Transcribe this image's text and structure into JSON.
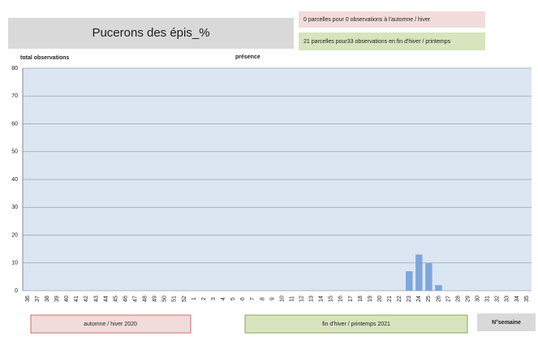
{
  "chart_data": {
    "type": "bar",
    "title": "Pucerons des épis_%",
    "notes": [
      "0 parcelles pour 0 observations à l'automne / hiver",
      "21 parcelles pour33 observations en fin d'hiver / printemps"
    ],
    "ylabel": "total observations",
    "series_label": "présence",
    "xlabel": "N°semaine",
    "period_labels": [
      "automne / hiver 2020",
      "fin d'hiver / printemps 2021"
    ],
    "categories": [
      36,
      37,
      38,
      39,
      40,
      41,
      42,
      43,
      44,
      45,
      46,
      47,
      48,
      49,
      50,
      51,
      52,
      1,
      2,
      3,
      4,
      5,
      6,
      7,
      8,
      9,
      10,
      11,
      12,
      13,
      14,
      15,
      16,
      17,
      18,
      19,
      20,
      21,
      22,
      23,
      24,
      25,
      26,
      27,
      28,
      29,
      30,
      31,
      32,
      33,
      34,
      35
    ],
    "values": [
      0,
      0,
      0,
      0,
      0,
      0,
      0,
      0,
      0,
      0,
      0,
      0,
      0,
      0,
      0,
      0,
      0,
      0,
      0,
      0,
      0,
      0,
      0,
      0,
      0,
      0,
      0,
      0,
      0,
      0,
      0,
      0,
      0,
      0,
      0,
      0,
      0,
      0,
      0,
      7,
      13,
      10,
      2,
      0,
      0,
      0,
      0,
      0,
      0,
      0,
      0,
      0
    ],
    "color": "#7ea6dc",
    "ylim": [
      0,
      80
    ],
    "yticks": [
      0,
      10,
      20,
      30,
      40,
      50,
      60,
      70,
      80
    ],
    "grid": true
  }
}
